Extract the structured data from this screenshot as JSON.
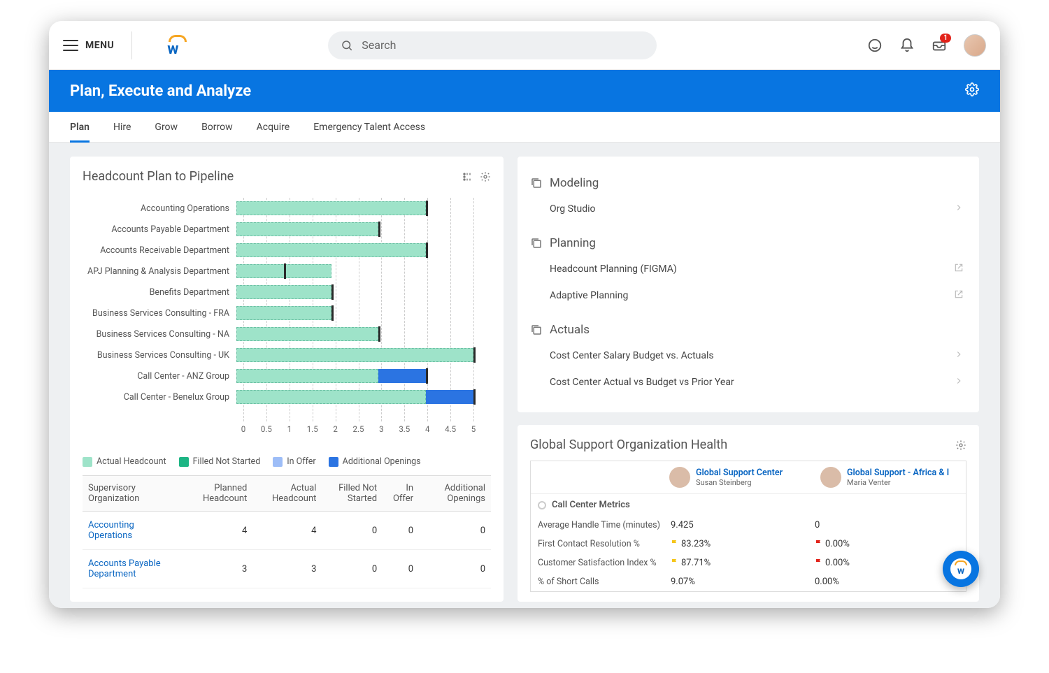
{
  "header": {
    "menu_label": "MENU",
    "search_placeholder": "Search",
    "inbox_badge": "1"
  },
  "page": {
    "title": "Plan, Execute and Analyze"
  },
  "tabs": [
    "Plan",
    "Hire",
    "Grow",
    "Borrow",
    "Acquire",
    "Emergency Talent Access"
  ],
  "active_tab": 0,
  "headcount_card": {
    "title": "Headcount Plan to Pipeline",
    "chart": {
      "type": "stacked-horizontal-bar",
      "x_min": 0,
      "x_max": 5,
      "x_tick_step": 0.5,
      "ticks": [
        "0",
        "0.5",
        "1",
        "1.5",
        "2",
        "2.5",
        "3",
        "3.5",
        "4",
        "4.5",
        "5"
      ],
      "colors": {
        "actual": "#9ee3c9",
        "filled_not_started": "#1db584",
        "in_offer": "#9dbdf7",
        "additional": "#2b74e2",
        "gridline": "#cccccc",
        "tick_border": "#2a2a2a"
      },
      "series_labels": {
        "actual": "Actual Headcount",
        "filled_not_started": "Filled Not Started",
        "in_offer": "In Offer",
        "additional": "Additional Openings"
      },
      "rows": [
        {
          "label": "Accounting Operations",
          "actual": 4,
          "filled": 0,
          "inOffer": 0,
          "additional": 0,
          "tick": 4
        },
        {
          "label": "Accounts Payable Department",
          "actual": 3,
          "filled": 0,
          "inOffer": 0,
          "additional": 0,
          "tick": 3
        },
        {
          "label": "Accounts Receivable Department",
          "actual": 4,
          "filled": 0,
          "inOffer": 0,
          "additional": 0,
          "tick": 4
        },
        {
          "label": "APJ Planning & Analysis Department",
          "actual": 2,
          "filled": 0,
          "inOffer": 0,
          "additional": 0,
          "tick": 1
        },
        {
          "label": "Benefits Department",
          "actual": 2,
          "filled": 0,
          "inOffer": 0,
          "additional": 0,
          "tick": 2
        },
        {
          "label": "Business Services Consulting - FRA",
          "actual": 2,
          "filled": 0,
          "inOffer": 0,
          "additional": 0,
          "tick": 2
        },
        {
          "label": "Business Services Consulting - NA",
          "actual": 3,
          "filled": 0,
          "inOffer": 0,
          "additional": 0,
          "tick": 3
        },
        {
          "label": "Business Services Consulting - UK",
          "actual": 5,
          "filled": 0,
          "inOffer": 0,
          "additional": 0,
          "tick": 5
        },
        {
          "label": "Call Center - ANZ Group",
          "actual": 3,
          "filled": 0,
          "inOffer": 0,
          "additional": 1,
          "tick": 4
        },
        {
          "label": "Call Center - Benelux Group",
          "actual": 4,
          "filled": 0,
          "inOffer": 0,
          "additional": 1,
          "tick": 5
        }
      ]
    },
    "table": {
      "columns": [
        "Supervisory Organization",
        "Planned Headcount",
        "Actual Headcount",
        "Filled Not Started",
        "In Offer",
        "Additional Openings"
      ],
      "rows": [
        [
          "Accounting Operations",
          "4",
          "4",
          "0",
          "0",
          "0"
        ],
        [
          "Accounts Payable Department",
          "3",
          "3",
          "0",
          "0",
          "0"
        ]
      ]
    }
  },
  "right_panel": {
    "sections": [
      {
        "title": "Modeling",
        "items": [
          {
            "label": "Org Studio",
            "icon": "chevron"
          }
        ]
      },
      {
        "title": "Planning",
        "items": [
          {
            "label": "Headcount Planning (FIGMA)",
            "icon": "external"
          },
          {
            "label": "Adaptive Planning",
            "icon": "external"
          }
        ]
      },
      {
        "title": "Actuals",
        "items": [
          {
            "label": "Cost Center Salary Budget vs. Actuals",
            "icon": "chevron"
          },
          {
            "label": "Cost Center Actual vs Budget vs Prior Year",
            "icon": "chevron"
          }
        ]
      }
    ]
  },
  "org_health": {
    "title": "Global Support Organization Health",
    "columns": [
      {
        "name": "Global Support Center",
        "sub": "Susan Steinberg"
      },
      {
        "name": "Global Support - Africa & I",
        "sub": "Maria Venter"
      }
    ],
    "group_title": "Call Center Metrics",
    "rows": [
      {
        "label": "Average Handle Time (minutes)",
        "v1": "9.425",
        "f1": "",
        "v2": "0",
        "f2": ""
      },
      {
        "label": "First Contact Resolution %",
        "v1": "83.23%",
        "f1": "y",
        "v2": "0.00%",
        "f2": "r"
      },
      {
        "label": "Customer Satisfaction Index %",
        "v1": "87.71%",
        "f1": "y",
        "v2": "0.00%",
        "f2": "r"
      },
      {
        "label": "% of Short Calls",
        "v1": "9.07%",
        "f1": "",
        "v2": "0.00%",
        "f2": ""
      }
    ]
  }
}
